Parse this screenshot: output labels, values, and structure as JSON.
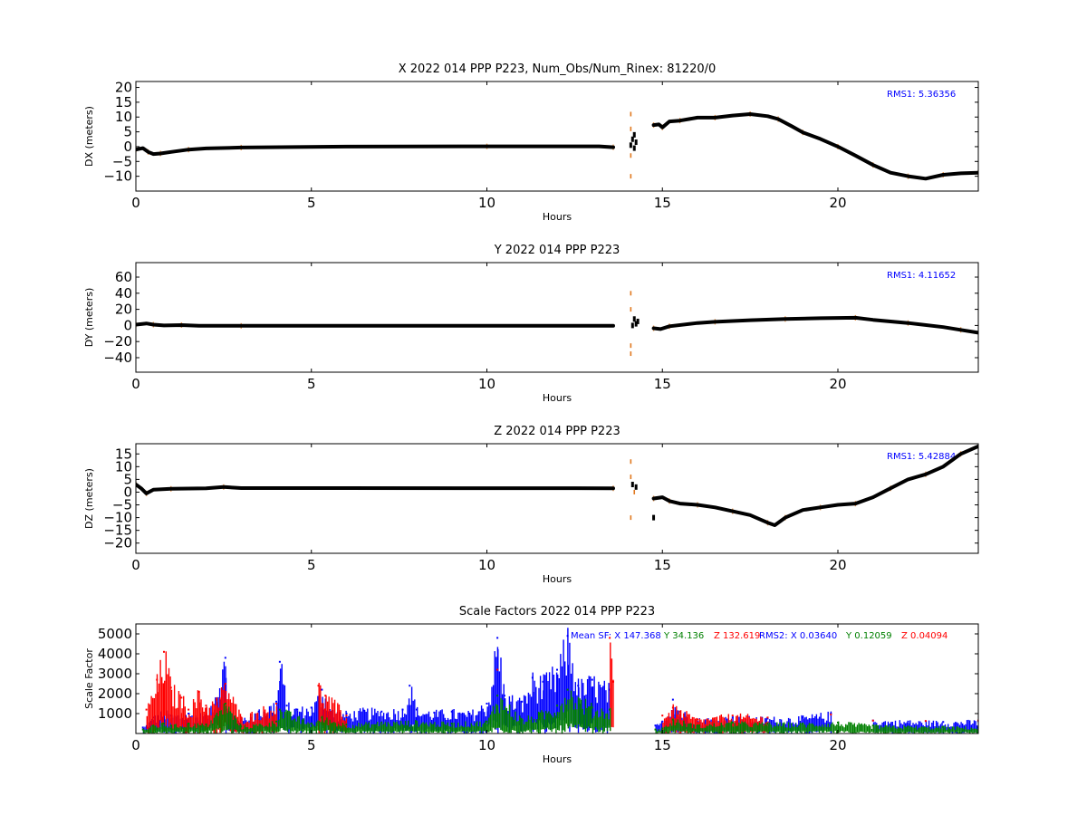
{
  "chart_data": [
    {
      "type": "line",
      "title": "X 2022 014 PPP  P223, Num_Obs/Num_Rinex: 81220/0",
      "xlabel": "Hours",
      "ylabel": "DX (meters)",
      "xlim": [
        0,
        24
      ],
      "ylim": [
        -15,
        22
      ],
      "xticks": [
        "0",
        "5",
        "10",
        "15",
        "20"
      ],
      "yticks": [
        20,
        15,
        10,
        5,
        0,
        -5,
        -10
      ],
      "ytick_labels": [
        "20",
        "15",
        "10",
        "5",
        "0",
        "−10"
      ],
      "ytick_labels_full": [
        "20",
        "15",
        "10",
        "5",
        "0",
        "−5",
        "−10"
      ],
      "annotation": "RMS1:  5.36356",
      "colors": {
        "line": "#000000",
        "scatter": "#e0781e",
        "annotation": "#0000ff"
      },
      "series": [
        {
          "values": [
            [
              0.0,
              -1.0
            ],
            [
              0.2,
              -0.5
            ],
            [
              0.35,
              -1.8
            ],
            [
              0.5,
              -2.5
            ],
            [
              0.7,
              -2.3
            ],
            [
              1.0,
              -1.8
            ],
            [
              1.5,
              -1.0
            ],
            [
              2.0,
              -0.6
            ],
            [
              3.0,
              -0.3
            ],
            [
              6.0,
              0.0
            ],
            [
              10.0,
              0.1
            ],
            [
              13.2,
              0.1
            ],
            [
              13.6,
              -0.2
            ]
          ]
        },
        {
          "values": [
            [
              14.75,
              7.3
            ],
            [
              14.9,
              7.5
            ],
            [
              15.0,
              6.5
            ],
            [
              15.2,
              8.5
            ],
            [
              15.5,
              8.8
            ],
            [
              16.0,
              9.8
            ],
            [
              16.5,
              9.8
            ],
            [
              17.0,
              10.5
            ],
            [
              17.5,
              11.0
            ],
            [
              18.0,
              10.3
            ],
            [
              18.3,
              9.3
            ],
            [
              18.7,
              6.8
            ],
            [
              19.0,
              4.8
            ],
            [
              19.5,
              2.6
            ],
            [
              20.0,
              0.0
            ],
            [
              20.5,
              -3.0
            ],
            [
              21.0,
              -6.2
            ],
            [
              21.5,
              -8.8
            ],
            [
              22.0,
              -10.0
            ],
            [
              22.5,
              -10.8
            ],
            [
              23.0,
              -9.5
            ],
            [
              23.5,
              -9.0
            ],
            [
              24.0,
              -8.8
            ]
          ]
        }
      ],
      "scatter": [
        [
          14.1,
          11.0
        ],
        [
          14.1,
          -3.0
        ],
        [
          14.1,
          -10.0
        ],
        [
          14.1,
          6.0
        ],
        [
          14.15,
          2.5
        ],
        [
          14.2,
          -0.5
        ],
        [
          14.25,
          1.5
        ],
        [
          14.2,
          4.0
        ],
        [
          14.1,
          0.5
        ]
      ]
    },
    {
      "type": "line",
      "title": "Y 2022 014 PPP  P223",
      "xlabel": "Hours",
      "ylabel": "DY (meters)",
      "xlim": [
        0,
        24
      ],
      "ylim": [
        -58,
        78
      ],
      "xticks": [
        "0",
        "5",
        "10",
        "15",
        "20"
      ],
      "yticks": [
        60,
        40,
        20,
        0,
        -20,
        -40
      ],
      "ytick_labels": [
        "60",
        "40",
        "20",
        "0",
        "−20",
        "−40"
      ],
      "annotation": "RMS1:  4.11652",
      "colors": {
        "line": "#000000",
        "scatter": "#e0781e",
        "annotation": "#0000ff"
      },
      "series": [
        {
          "values": [
            [
              0.0,
              1.0
            ],
            [
              0.3,
              2.5
            ],
            [
              0.5,
              1.0
            ],
            [
              0.8,
              0.0
            ],
            [
              1.3,
              0.5
            ],
            [
              1.8,
              -0.5
            ],
            [
              3.0,
              -0.5
            ],
            [
              13.6,
              -0.5
            ]
          ]
        },
        {
          "values": [
            [
              14.75,
              -3.5
            ],
            [
              14.95,
              -4.5
            ],
            [
              15.2,
              -1.0
            ],
            [
              16.0,
              3.0
            ],
            [
              16.5,
              4.5
            ],
            [
              17.5,
              6.5
            ],
            [
              18.5,
              8.0
            ],
            [
              19.5,
              9.0
            ],
            [
              20.5,
              9.5
            ],
            [
              21.0,
              7.0
            ],
            [
              22.0,
              3.0
            ],
            [
              23.0,
              -2.0
            ],
            [
              23.5,
              -5.5
            ],
            [
              24.0,
              -9.0
            ]
          ]
        }
      ],
      "scatter": [
        [
          14.1,
          40.0
        ],
        [
          14.1,
          20.0
        ],
        [
          14.1,
          -25.0
        ],
        [
          14.1,
          -35.0
        ],
        [
          14.2,
          8.0
        ],
        [
          14.25,
          2.0
        ],
        [
          14.15,
          0.0
        ],
        [
          14.3,
          5.0
        ]
      ]
    },
    {
      "type": "line",
      "title": "Z 2022 014 PPP  P223",
      "xlabel": "Hours",
      "ylabel": "DZ (meters)",
      "xlim": [
        0,
        24
      ],
      "ylim": [
        -24,
        19
      ],
      "xticks": [
        "0",
        "5",
        "10",
        "15",
        "20"
      ],
      "yticks": [
        15,
        10,
        5,
        0,
        -5,
        -10,
        -15,
        -20
      ],
      "ytick_labels": [
        "15",
        "10",
        "5",
        "0",
        "−5",
        "−10",
        "−15",
        "−20"
      ],
      "annotation": "RMS1:  5.42884",
      "colors": {
        "line": "#000000",
        "scatter": "#e0781e",
        "annotation": "#0000ff"
      },
      "series": [
        {
          "values": [
            [
              0.0,
              3.0
            ],
            [
              0.15,
              1.5
            ],
            [
              0.3,
              -0.5
            ],
            [
              0.5,
              1.0
            ],
            [
              1.0,
              1.3
            ],
            [
              2.0,
              1.5
            ],
            [
              2.5,
              2.0
            ],
            [
              3.0,
              1.6
            ],
            [
              13.6,
              1.5
            ]
          ]
        },
        {
          "values": [
            [
              14.75,
              -2.5
            ],
            [
              15.0,
              -2.0
            ],
            [
              15.2,
              -3.5
            ],
            [
              15.5,
              -4.5
            ],
            [
              16.0,
              -5.0
            ],
            [
              16.5,
              -6.0
            ],
            [
              17.0,
              -7.5
            ],
            [
              17.5,
              -9.0
            ],
            [
              18.0,
              -12.0
            ],
            [
              18.2,
              -13.0
            ],
            [
              18.5,
              -10.0
            ],
            [
              19.0,
              -7.0
            ],
            [
              19.5,
              -6.0
            ],
            [
              20.0,
              -5.0
            ],
            [
              20.5,
              -4.5
            ],
            [
              21.0,
              -2.0
            ],
            [
              21.5,
              1.5
            ],
            [
              22.0,
              5.0
            ],
            [
              22.5,
              7.0
            ],
            [
              23.0,
              10.0
            ],
            [
              23.5,
              15.0
            ],
            [
              24.0,
              18.0
            ]
          ]
        }
      ],
      "scatter": [
        [
          14.1,
          12.0
        ],
        [
          14.1,
          6.0
        ],
        [
          14.1,
          -10.0
        ],
        [
          14.2,
          0.0
        ],
        [
          14.25,
          2.0
        ],
        [
          14.15,
          3.0
        ],
        [
          14.75,
          -10.0
        ]
      ]
    },
    {
      "type": "scatter",
      "title": "Scale Factors 2022 014 PPP  P223",
      "xlabel": "Hours",
      "ylabel": "Scale Factor",
      "xlim": [
        0,
        24
      ],
      "ylim": [
        0,
        5500
      ],
      "xticks": [
        "0",
        "5",
        "10",
        "15",
        "20"
      ],
      "yticks": [
        5000,
        4000,
        3000,
        2000,
        1000
      ],
      "ytick_labels": [
        "5000",
        "4000",
        "3000",
        "2000",
        "1000"
      ],
      "annotation_parts": [
        {
          "text": "Mean SF: X 147.368",
          "color": "#0000ff"
        },
        {
          "text": "Y  34.136",
          "color": "#008000"
        },
        {
          "text": "Z 132.619",
          "color": "#ff0000"
        },
        {
          "text": "RMS2: X  0.03640",
          "color": "#0000ff"
        },
        {
          "text": "Y  0.12059",
          "color": "#008000"
        },
        {
          "text": "Z  0.04094",
          "color": "#ff0000"
        }
      ],
      "series": [
        {
          "name": "X",
          "color": "#0000ff",
          "values": [
            [
              0.2,
              300
            ],
            [
              0.5,
              800
            ],
            [
              0.8,
              1100
            ],
            [
              1.0,
              900
            ],
            [
              1.5,
              1000
            ],
            [
              2.0,
              900
            ],
            [
              2.55,
              3800
            ],
            [
              2.6,
              1200
            ],
            [
              3.0,
              700
            ],
            [
              3.5,
              1100
            ],
            [
              4.0,
              1600
            ],
            [
              4.1,
              3600
            ],
            [
              4.3,
              1400
            ],
            [
              4.6,
              1200
            ],
            [
              5.0,
              1300
            ],
            [
              5.3,
              2200
            ],
            [
              5.6,
              1100
            ],
            [
              6.0,
              1000
            ],
            [
              6.5,
              1150
            ],
            [
              7.0,
              1100
            ],
            [
              7.6,
              1200
            ],
            [
              7.8,
              2400
            ],
            [
              8.0,
              1200
            ],
            [
              8.5,
              1050
            ],
            [
              9.0,
              1100
            ],
            [
              9.5,
              1000
            ],
            [
              10.0,
              1500
            ],
            [
              10.3,
              4800
            ],
            [
              10.5,
              1900
            ],
            [
              11.0,
              1600
            ],
            [
              11.3,
              2800
            ],
            [
              11.6,
              2600
            ],
            [
              12.0,
              3200
            ],
            [
              12.3,
              4900
            ],
            [
              12.6,
              2400
            ],
            [
              13.0,
              2700
            ],
            [
              13.5,
              2200
            ],
            [
              14.8,
              400
            ],
            [
              15.0,
              600
            ],
            [
              15.3,
              1700
            ],
            [
              15.5,
              1100
            ],
            [
              16.0,
              700
            ],
            [
              17.0,
              800
            ],
            [
              18.0,
              750
            ],
            [
              19.0,
              800
            ],
            [
              19.8,
              1000
            ],
            [
              21.0,
              650
            ],
            [
              22.0,
              600
            ],
            [
              23.0,
              580
            ],
            [
              24.0,
              620
            ]
          ]
        },
        {
          "name": "Y",
          "color": "#008000",
          "values": [
            [
              0.2,
              200
            ],
            [
              0.5,
              400
            ],
            [
              0.8,
              500
            ],
            [
              1.0,
              400
            ],
            [
              1.5,
              500
            ],
            [
              2.0,
              450
            ],
            [
              2.55,
              1500
            ],
            [
              3.0,
              350
            ],
            [
              4.0,
              600
            ],
            [
              4.1,
              1200
            ],
            [
              5.0,
              500
            ],
            [
              5.3,
              800
            ],
            [
              6.0,
              450
            ],
            [
              7.0,
              550
            ],
            [
              8.0,
              600
            ],
            [
              9.0,
              500
            ],
            [
              10.0,
              600
            ],
            [
              10.3,
              1900
            ],
            [
              11.0,
              700
            ],
            [
              11.5,
              1000
            ],
            [
              12.0,
              1400
            ],
            [
              12.3,
              2200
            ],
            [
              13.0,
              1300
            ],
            [
              13.5,
              1200
            ],
            [
              14.8,
              200
            ],
            [
              15.0,
              250
            ],
            [
              15.3,
              700
            ],
            [
              16.0,
              400
            ],
            [
              17.0,
              550
            ],
            [
              18.0,
              500
            ],
            [
              19.0,
              500
            ],
            [
              20.0,
              550
            ],
            [
              21.0,
              400
            ],
            [
              22.0,
              350
            ],
            [
              23.0,
              330
            ],
            [
              24.0,
              300
            ]
          ]
        },
        {
          "name": "Z",
          "color": "#ff0000",
          "values": [
            [
              0.3,
              1200
            ],
            [
              0.6,
              2700
            ],
            [
              0.8,
              4100
            ],
            [
              1.0,
              2300
            ],
            [
              1.3,
              1800
            ],
            [
              1.5,
              1200
            ],
            [
              1.8,
              2100
            ],
            [
              2.0,
              1400
            ],
            [
              2.3,
              1700
            ],
            [
              2.55,
              2500
            ],
            [
              3.0,
              800
            ],
            [
              4.0,
              1500
            ],
            [
              5.2,
              2400
            ],
            [
              5.4,
              1900
            ],
            [
              6.0,
              900
            ],
            [
              10.3,
              3200
            ],
            [
              13.5,
              4800
            ],
            [
              13.6,
              2600
            ],
            [
              15.0,
              900
            ],
            [
              15.3,
              1300
            ],
            [
              16.0,
              700
            ],
            [
              17.0,
              900
            ],
            [
              18.0,
              800
            ],
            [
              19.8,
              950
            ],
            [
              21.0,
              650
            ],
            [
              22.5,
              630
            ],
            [
              24.0,
              650
            ]
          ]
        }
      ]
    }
  ]
}
